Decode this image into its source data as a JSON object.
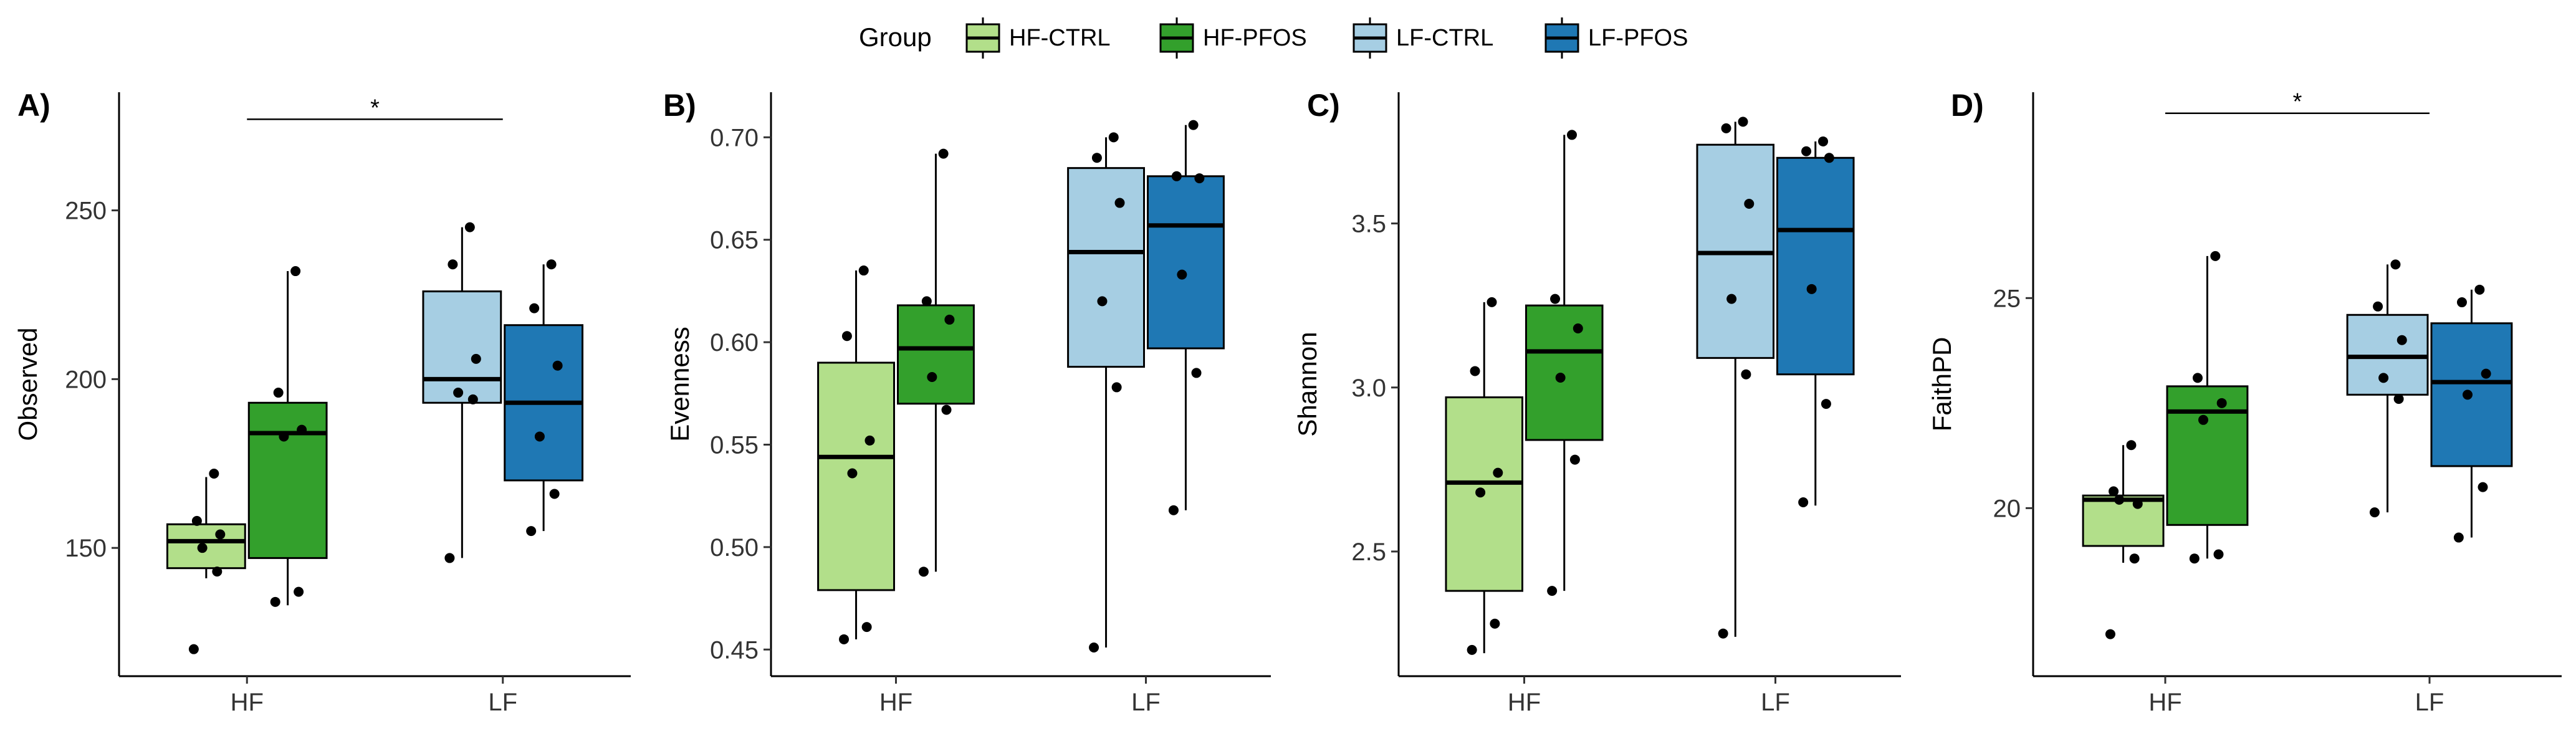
{
  "legend": {
    "title": "Group",
    "items": [
      {
        "label": "HF-CTRL",
        "color": "#b2df8a"
      },
      {
        "label": "HF-PFOS",
        "color": "#33a02c"
      },
      {
        "label": "LF-CTRL",
        "color": "#a6cee3"
      },
      {
        "label": "LF-PFOS",
        "color": "#1f78b4"
      }
    ]
  },
  "chart_data": [
    {
      "type": "box",
      "panel": "A)",
      "ylabel": "Observed",
      "categories": [
        "HF",
        "LF"
      ],
      "ylim": [
        112,
        285
      ],
      "yticks": [
        150,
        200,
        250
      ],
      "significance": {
        "label": "*",
        "from": "HF",
        "to": "LF",
        "y": 277
      },
      "series": [
        {
          "name": "HF-CTRL",
          "category": "HF",
          "min": 141,
          "q1": 144,
          "median": 152,
          "q3": 157,
          "max": 171,
          "points": [
            172,
            158,
            154,
            150,
            143,
            120
          ]
        },
        {
          "name": "HF-PFOS",
          "category": "HF",
          "min": 133,
          "q1": 147,
          "median": 184,
          "q3": 193,
          "max": 232,
          "points": [
            232,
            196,
            185,
            183,
            137,
            134
          ]
        },
        {
          "name": "LF-CTRL",
          "category": "LF",
          "min": 147,
          "q1": 193,
          "median": 200,
          "q3": 226,
          "max": 245,
          "points": [
            245,
            234,
            206,
            196,
            194,
            147
          ]
        },
        {
          "name": "LF-PFOS",
          "category": "LF",
          "min": 155,
          "q1": 170,
          "median": 193,
          "q3": 216,
          "max": 234,
          "points": [
            234,
            221,
            204,
            183,
            166,
            155
          ]
        }
      ]
    },
    {
      "type": "box",
      "panel": "B)",
      "ylabel": "Evenness",
      "categories": [
        "HF",
        "LF"
      ],
      "ylim": [
        0.437,
        0.722
      ],
      "yticks": [
        0.45,
        0.5,
        0.55,
        0.6,
        0.65,
        0.7
      ],
      "ytick_labels": [
        "0.45",
        "0.50",
        "0.55",
        "0.60",
        "0.65",
        "0.70"
      ],
      "series": [
        {
          "name": "HF-CTRL",
          "category": "HF",
          "min": 0.455,
          "q1": 0.479,
          "median": 0.544,
          "q3": 0.59,
          "max": 0.635,
          "points": [
            0.635,
            0.603,
            0.552,
            0.536,
            0.461,
            0.455
          ]
        },
        {
          "name": "HF-PFOS",
          "category": "HF",
          "min": 0.488,
          "q1": 0.57,
          "median": 0.597,
          "q3": 0.618,
          "max": 0.692,
          "points": [
            0.692,
            0.62,
            0.611,
            0.583,
            0.567,
            0.488
          ]
        },
        {
          "name": "LF-CTRL",
          "category": "LF",
          "min": 0.451,
          "q1": 0.588,
          "median": 0.644,
          "q3": 0.685,
          "max": 0.7,
          "points": [
            0.7,
            0.69,
            0.668,
            0.62,
            0.578,
            0.451
          ]
        },
        {
          "name": "LF-PFOS",
          "category": "LF",
          "min": 0.518,
          "q1": 0.597,
          "median": 0.657,
          "q3": 0.681,
          "max": 0.706,
          "points": [
            0.706,
            0.681,
            0.68,
            0.633,
            0.585,
            0.518
          ]
        }
      ]
    },
    {
      "type": "box",
      "panel": "C)",
      "ylabel": "Shannon",
      "categories": [
        "HF",
        "LF"
      ],
      "ylim": [
        2.12,
        3.9
      ],
      "yticks": [
        2.5,
        3.0,
        3.5
      ],
      "ytick_labels": [
        "2.5",
        "3.0",
        "3.5"
      ],
      "series": [
        {
          "name": "HF-CTRL",
          "category": "HF",
          "min": 2.19,
          "q1": 2.38,
          "median": 2.71,
          "q3": 2.97,
          "max": 3.26,
          "points": [
            3.26,
            3.05,
            2.74,
            2.68,
            2.28,
            2.2
          ]
        },
        {
          "name": "HF-PFOS",
          "category": "HF",
          "min": 2.38,
          "q1": 2.84,
          "median": 3.11,
          "q3": 3.25,
          "max": 3.77,
          "points": [
            3.77,
            3.27,
            3.18,
            3.03,
            2.78,
            2.38
          ]
        },
        {
          "name": "LF-CTRL",
          "category": "LF",
          "min": 2.24,
          "q1": 3.09,
          "median": 3.41,
          "q3": 3.74,
          "max": 3.81,
          "points": [
            3.81,
            3.79,
            3.56,
            3.27,
            3.04,
            2.25
          ]
        },
        {
          "name": "LF-PFOS",
          "category": "LF",
          "min": 2.64,
          "q1": 3.04,
          "median": 3.48,
          "q3": 3.7,
          "max": 3.75,
          "points": [
            3.75,
            3.72,
            3.7,
            3.3,
            2.95,
            2.65
          ]
        }
      ]
    },
    {
      "type": "box",
      "panel": "D)",
      "ylabel": "FaithPD",
      "categories": [
        "HF",
        "LF"
      ],
      "ylim": [
        16.0,
        29.9
      ],
      "yticks": [
        20,
        25
      ],
      "significance": {
        "label": "*",
        "from": "HF",
        "to": "LF",
        "y": 29.4
      },
      "series": [
        {
          "name": "HF-CTRL",
          "category": "HF",
          "min": 18.7,
          "q1": 19.1,
          "median": 20.2,
          "q3": 20.3,
          "max": 21.5,
          "points": [
            21.5,
            20.4,
            20.1,
            20.2,
            18.8,
            17.0
          ]
        },
        {
          "name": "HF-PFOS",
          "category": "HF",
          "min": 18.8,
          "q1": 19.6,
          "median": 22.3,
          "q3": 22.9,
          "max": 26.0,
          "points": [
            26.0,
            23.1,
            22.5,
            22.1,
            18.9,
            18.8
          ]
        },
        {
          "name": "LF-CTRL",
          "category": "LF",
          "min": 19.9,
          "q1": 22.7,
          "median": 23.6,
          "q3": 24.6,
          "max": 25.8,
          "points": [
            25.8,
            24.8,
            24.0,
            23.1,
            22.6,
            19.9
          ]
        },
        {
          "name": "LF-PFOS",
          "category": "LF",
          "min": 19.3,
          "q1": 21.0,
          "median": 23.0,
          "q3": 24.4,
          "max": 25.2,
          "points": [
            25.2,
            24.9,
            23.2,
            22.7,
            20.5,
            19.3
          ]
        }
      ]
    }
  ]
}
